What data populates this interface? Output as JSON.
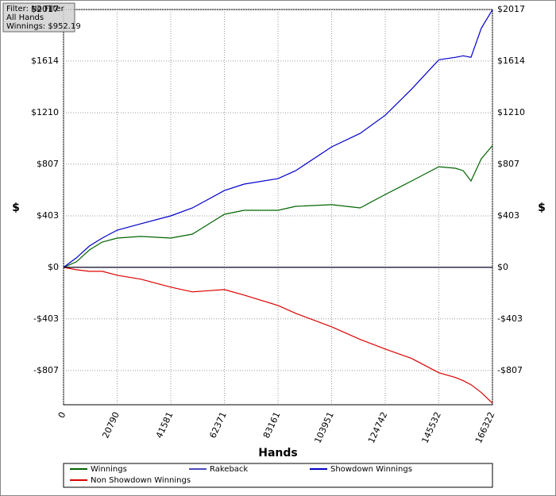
{
  "chart_data": {
    "type": "line",
    "x_label": "Hands",
    "y_label": "$",
    "annotations": [
      "Filter: No Filter",
      "All Hands",
      "Winnings: $952.19"
    ],
    "x": [
      0,
      5000,
      10000,
      15000,
      20790,
      30000,
      41581,
      50000,
      62371,
      70000,
      83161,
      90000,
      103951,
      115000,
      124742,
      135000,
      145532,
      152000,
      155000,
      158000,
      162000,
      166322
    ],
    "series": [
      {
        "name": "Winnings",
        "color": "#006400",
        "values": [
          0,
          43,
          136,
          198,
          229,
          242,
          229,
          260,
          415,
          446,
          446,
          477,
          490,
          465,
          570,
          676,
          787,
          775,
          756,
          676,
          850,
          952
        ]
      },
      {
        "name": "Rakeback",
        "color": "#4b4bbf",
        "values": [
          0,
          0,
          0,
          0,
          0,
          0,
          0,
          0,
          0,
          0,
          0,
          0,
          0,
          0,
          0,
          0,
          0,
          0,
          0,
          0,
          0,
          0
        ]
      },
      {
        "name": "Showdown Winnings",
        "color": "#0000cc",
        "values": [
          0,
          74,
          167,
          229,
          291,
          341,
          403,
          465,
          601,
          651,
          694,
          756,
          942,
          1048,
          1190,
          1395,
          1624,
          1643,
          1655,
          1643,
          1872,
          2015
        ]
      },
      {
        "name": "Non Showdown Winnings",
        "color": "#dd0000",
        "values": [
          0,
          -19,
          -31,
          -31,
          -62,
          -93,
          -155,
          -192,
          -174,
          -217,
          -298,
          -360,
          -465,
          -564,
          -639,
          -713,
          -825,
          -862,
          -887,
          -918,
          -980,
          -1063
        ]
      }
    ],
    "xlim": [
      0,
      166322
    ],
    "xticks": [
      0,
      20790,
      41581,
      62371,
      83161,
      103951,
      124742,
      145532,
      166322
    ],
    "ylim": [
      -1075,
      2017
    ],
    "yticks": [
      {
        "value": -807,
        "label": "-$807"
      },
      {
        "value": -403,
        "label": "-$403"
      },
      {
        "value": 0,
        "label": "$0"
      },
      {
        "value": 403,
        "label": "$403"
      },
      {
        "value": 807,
        "label": "$807"
      },
      {
        "value": 1210,
        "label": "$1210"
      },
      {
        "value": 1614,
        "label": "$1614"
      },
      {
        "value": 2017,
        "label": "$2017"
      }
    ],
    "grid": true
  }
}
